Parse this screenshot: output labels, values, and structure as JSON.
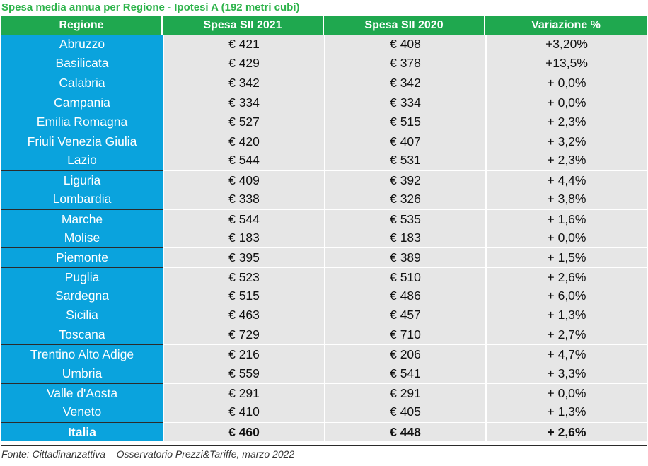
{
  "title": "Spesa media annua per Regione - Ipotesi A (192 metri cubi)",
  "source": "Fonte: Cittadinanzattiva – Osservatorio Prezzi&Tariffe, marzo 2022",
  "colors": {
    "header": "#1fa84f",
    "region_col": "#0aa3dd",
    "cells": "#e6e6e6",
    "title": "#2db34a"
  },
  "chart_data": {
    "type": "table",
    "title": "Spesa media annua per Regione - Ipotesi A (192 metri cubi)",
    "columns": [
      "Regione",
      "Spesa SII 2021",
      "Spesa SII 2020",
      "Variazione %"
    ],
    "rows": [
      {
        "region": "Abruzzo",
        "spesa_2021": "€ 421",
        "spesa_2020": "€ 408",
        "variazione": "+3,20%"
      },
      {
        "region": "Basilicata",
        "spesa_2021": "€ 429",
        "spesa_2020": "€ 378",
        "variazione": "+13,5%"
      },
      {
        "region": "Calabria",
        "spesa_2021": "€ 342",
        "spesa_2020": "€ 342",
        "variazione": "+ 0,0%"
      },
      {
        "region": "Campania",
        "spesa_2021": "€ 334",
        "spesa_2020": "€ 334",
        "variazione": "+ 0,0%"
      },
      {
        "region": "Emilia Romagna",
        "spesa_2021": "€ 527",
        "spesa_2020": "€ 515",
        "variazione": "+ 2,3%"
      },
      {
        "region": "Friuli Venezia Giulia",
        "spesa_2021": "€ 420",
        "spesa_2020": "€ 407",
        "variazione": "+ 3,2%"
      },
      {
        "region": "Lazio",
        "spesa_2021": "€ 544",
        "spesa_2020": "€ 531",
        "variazione": "+ 2,3%"
      },
      {
        "region": "Liguria",
        "spesa_2021": "€ 409",
        "spesa_2020": "€ 392",
        "variazione": "+ 4,4%"
      },
      {
        "region": "Lombardia",
        "spesa_2021": "€ 338",
        "spesa_2020": "€ 326",
        "variazione": "+ 3,8%"
      },
      {
        "region": "Marche",
        "spesa_2021": "€ 544",
        "spesa_2020": "€ 535",
        "variazione": "+ 1,6%"
      },
      {
        "region": "Molise",
        "spesa_2021": "€ 183",
        "spesa_2020": "€ 183",
        "variazione": "+ 0,0%"
      },
      {
        "region": "Piemonte",
        "spesa_2021": "€ 395",
        "spesa_2020": "€ 389",
        "variazione": "+ 1,5%"
      },
      {
        "region": "Puglia",
        "spesa_2021": "€ 523",
        "spesa_2020": "€ 510",
        "variazione": "+ 2,6%"
      },
      {
        "region": "Sardegna",
        "spesa_2021": "€ 515",
        "spesa_2020": "€ 486",
        "variazione": "+ 6,0%"
      },
      {
        "region": "Sicilia",
        "spesa_2021": "€ 463",
        "spesa_2020": "€ 457",
        "variazione": "+ 1,3%"
      },
      {
        "region": "Toscana",
        "spesa_2021": "€ 729",
        "spesa_2020": "€ 710",
        "variazione": "+ 2,7%"
      },
      {
        "region": "Trentino Alto Adige",
        "spesa_2021": "€ 216",
        "spesa_2020": "€ 206",
        "variazione": "+ 4,7%"
      },
      {
        "region": "Umbria",
        "spesa_2021": "€ 559",
        "spesa_2020": "€ 541",
        "variazione": "+ 3,3%"
      },
      {
        "region": "Valle d'Aosta",
        "spesa_2021": "€ 291",
        "spesa_2020": "€ 291",
        "variazione": "+ 0,0%"
      },
      {
        "region": "Veneto",
        "spesa_2021": "€ 410",
        "spesa_2020": "€ 405",
        "variazione": "+ 1,3%"
      }
    ],
    "total": {
      "region": "Italia",
      "spesa_2021": "€ 460",
      "spesa_2020": "€ 448",
      "variazione": "+ 2,6%"
    },
    "group_breaks_before": [
      3,
      5,
      7,
      9,
      11,
      12,
      16,
      18
    ]
  }
}
